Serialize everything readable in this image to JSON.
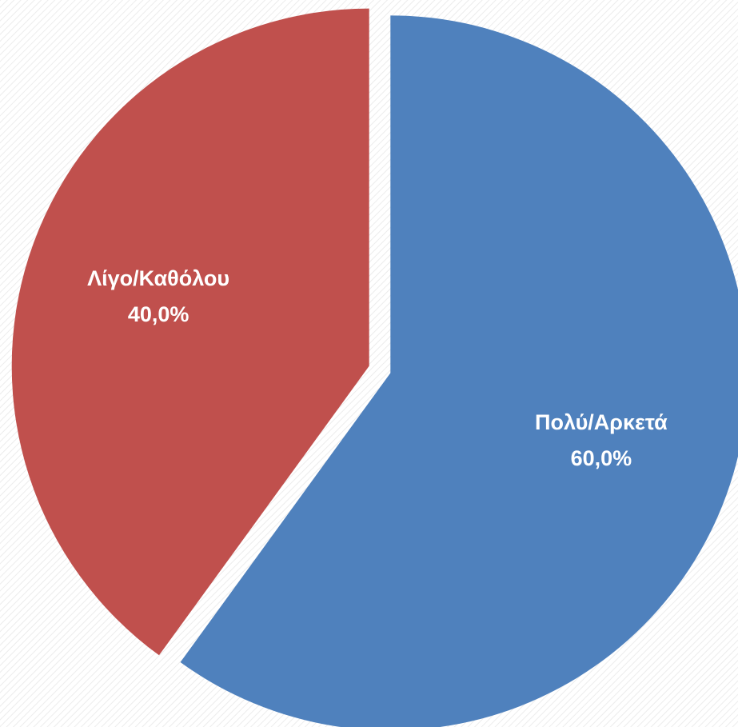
{
  "chart_data": {
    "type": "pie",
    "categories": [
      "Πολύ/Αρκετά",
      "Λίγο/Καθόλου"
    ],
    "values": [
      60,
      40
    ],
    "value_labels": [
      "60,0%",
      "40,0%"
    ],
    "colors": [
      "#4f81bd",
      "#c0504d"
    ]
  }
}
